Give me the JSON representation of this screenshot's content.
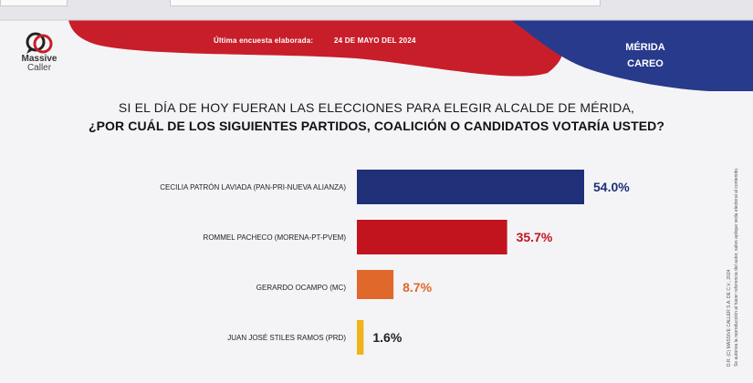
{
  "header": {
    "survey_prefix": "Última encuesta elaborada:",
    "survey_date": "24 DE MAYO DEL 2024",
    "city": "MÉRIDA",
    "subtitle": "CAREO"
  },
  "logo": {
    "line1": "Massive",
    "line2": "Caller",
    "icon": "speech-bubbles-icon"
  },
  "question": {
    "line1": "SI EL DÍA DE HOY FUERAN LAS ELECCIONES PARA ELEGIR ALCALDE DE MÉRIDA,",
    "line2": "¿POR CUÁL DE LOS SIGUIENTES PARTIDOS, COALICIÓN O CANDIDATOS VOTARÍA USTED?"
  },
  "side_note": {
    "line1": "D.R. (C) MASSIVE CALLER S.A. DE C.V., 2024",
    "line2": "Se autoriza la reproducción al hacer referencia del autor, salvo aplique veda electoral al contenido."
  },
  "colors": {
    "header_red": "#c81e2a",
    "header_navy": "#283a8c",
    "bars": [
      "#1f2f78",
      "#c2141f",
      "#e0682b",
      "#f2b21c"
    ],
    "value_labels": [
      "#1f2f78",
      "#c2141f",
      "#e0682b",
      "#222222"
    ]
  },
  "chart_data": {
    "type": "bar",
    "orientation": "horizontal",
    "categories": [
      "CECILIA PATRÓN LAVIADA (PAN-PRI-NUEVA ALIANZA)",
      "ROMMEL PACHECO (MORENA-PT-PVEM)",
      "GERARDO OCAMPO (MC)",
      "JUAN JOSÉ STILES RAMOS (PRD)"
    ],
    "values": [
      54.0,
      35.7,
      8.7,
      1.6
    ],
    "value_labels": [
      "54.0%",
      "35.7%",
      "8.7%",
      "1.6%"
    ],
    "xlim": [
      0,
      54.0
    ],
    "grid": false,
    "legend": false
  }
}
